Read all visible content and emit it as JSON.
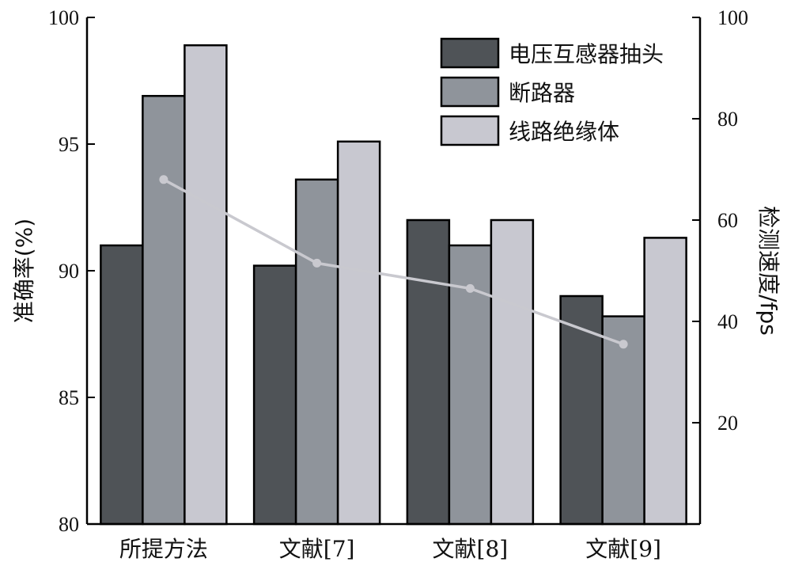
{
  "chart_data": {
    "type": "bar",
    "categories": [
      "所提方法",
      "文献[7]",
      "文献[8]",
      "文献[9]"
    ],
    "series": [
      {
        "name": "电压互感器抽头",
        "values": [
          91.0,
          90.2,
          92.0,
          89.0
        ],
        "color": "#4f5357"
      },
      {
        "name": "断路器",
        "values": [
          96.9,
          93.6,
          91.0,
          88.2
        ],
        "color": "#8f949b"
      },
      {
        "name": "线路绝缘体",
        "values": [
          98.9,
          95.1,
          92.0,
          91.3
        ],
        "color": "#c8c8d0"
      }
    ],
    "line_series": {
      "values": [
        68,
        51.5,
        46.5,
        35.5
      ],
      "color": "#c9c9cf",
      "axis": "right"
    },
    "ylabel": "准确率(%)",
    "ylabel_right": "检测速度/fps",
    "ylim": [
      80,
      100
    ],
    "ylim_right": [
      0,
      100
    ],
    "yticks": [
      "80",
      "85",
      "90",
      "95",
      "100"
    ],
    "yticks_right": [
      "20",
      "40",
      "60",
      "80",
      "100"
    ],
    "legend_position": "top-right",
    "grid": false
  }
}
